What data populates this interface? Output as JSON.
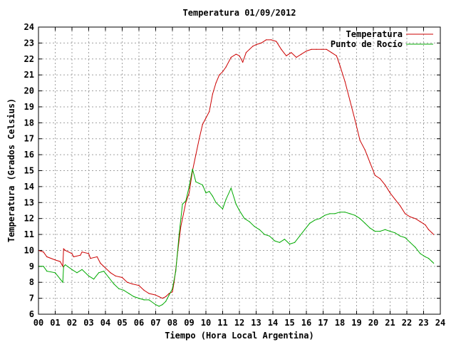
{
  "chart_data": {
    "type": "line",
    "title": "Temperatura 01/09/2012",
    "xlabel": "Tiempo (Hora Local Argentina)",
    "ylabel": "Temperatura (Grados Celsius)",
    "xlim": [
      0,
      24
    ],
    "ylim": [
      6,
      24
    ],
    "x_ticks": [
      "00",
      "01",
      "02",
      "03",
      "04",
      "05",
      "06",
      "07",
      "08",
      "09",
      "10",
      "11",
      "12",
      "13",
      "14",
      "15",
      "16",
      "17",
      "18",
      "19",
      "20",
      "21",
      "22",
      "23",
      "24"
    ],
    "y_ticks": [
      "6",
      "7",
      "8",
      "9",
      "10",
      "11",
      "12",
      "13",
      "14",
      "15",
      "16",
      "17",
      "18",
      "19",
      "20",
      "21",
      "22",
      "23",
      "24"
    ],
    "grid": true,
    "legend_position": "top-right",
    "series": [
      {
        "name": "Temperatura",
        "color": "#cc0000",
        "x": [
          0,
          0.3,
          0.5,
          1.0,
          1.3,
          1.45,
          1.5,
          1.6,
          2.0,
          2.1,
          2.5,
          2.6,
          3.0,
          3.1,
          3.5,
          3.7,
          4.0,
          4.3,
          4.6,
          5.0,
          5.3,
          5.6,
          6.0,
          6.3,
          6.6,
          7.0,
          7.2,
          7.4,
          7.6,
          7.8,
          8.0,
          8.1,
          8.2,
          8.3,
          8.5,
          8.8,
          9.0,
          9.2,
          9.4,
          9.6,
          9.8,
          10.0,
          10.2,
          10.4,
          10.6,
          10.8,
          11.0,
          11.2,
          11.5,
          11.8,
          12.0,
          12.2,
          12.4,
          12.6,
          12.8,
          13.0,
          13.3,
          13.6,
          13.9,
          14.2,
          14.5,
          14.8,
          15.1,
          15.4,
          15.7,
          16.0,
          16.3,
          16.6,
          16.9,
          17.2,
          17.5,
          17.8,
          18.0,
          18.3,
          18.6,
          18.9,
          19.2,
          19.5,
          19.8,
          20.1,
          20.4,
          20.7,
          21.0,
          21.3,
          21.6,
          21.9,
          22.2,
          22.5,
          22.8,
          23.1,
          23.3,
          23.5,
          23.6
        ],
        "y": [
          10.0,
          9.9,
          9.6,
          9.4,
          9.3,
          9.0,
          10.1,
          10.0,
          9.8,
          9.6,
          9.7,
          9.9,
          9.8,
          9.5,
          9.6,
          9.2,
          8.9,
          8.6,
          8.4,
          8.3,
          8.0,
          7.9,
          7.8,
          7.5,
          7.3,
          7.2,
          7.1,
          7.0,
          7.1,
          7.3,
          7.4,
          8.0,
          8.8,
          9.8,
          11.5,
          13.0,
          13.6,
          15.0,
          16.0,
          17.0,
          17.9,
          18.3,
          18.7,
          19.8,
          20.5,
          21.0,
          21.2,
          21.5,
          22.1,
          22.3,
          22.2,
          21.8,
          22.4,
          22.6,
          22.8,
          22.9,
          23.0,
          23.2,
          23.2,
          23.1,
          22.6,
          22.2,
          22.4,
          22.1,
          22.3,
          22.5,
          22.6,
          22.6,
          22.6,
          22.6,
          22.4,
          22.2,
          21.6,
          20.6,
          19.4,
          18.2,
          16.9,
          16.3,
          15.5,
          14.7,
          14.5,
          14.1,
          13.6,
          13.2,
          12.8,
          12.3,
          12.1,
          12.0,
          11.8,
          11.6,
          11.3,
          11.1,
          11.0
        ]
      },
      {
        "name": "Punto de Rocío",
        "color": "#00aa00",
        "x": [
          0,
          0.3,
          0.5,
          1.0,
          1.3,
          1.45,
          1.5,
          1.6,
          2.0,
          2.3,
          2.6,
          3.0,
          3.3,
          3.6,
          3.9,
          4.2,
          4.5,
          4.8,
          5.1,
          5.4,
          5.7,
          6.0,
          6.3,
          6.6,
          7.0,
          7.2,
          7.4,
          7.6,
          7.8,
          8.0,
          8.2,
          8.4,
          8.6,
          8.8,
          9.0,
          9.2,
          9.4,
          9.6,
          9.8,
          10.0,
          10.2,
          10.4,
          10.6,
          10.8,
          11.0,
          11.2,
          11.5,
          11.8,
          12.0,
          12.3,
          12.6,
          12.9,
          13.2,
          13.5,
          13.8,
          14.1,
          14.4,
          14.7,
          15.0,
          15.3,
          15.6,
          15.9,
          16.2,
          16.5,
          16.8,
          17.1,
          17.4,
          17.7,
          18.0,
          18.3,
          18.6,
          18.9,
          19.2,
          19.5,
          19.8,
          20.1,
          20.4,
          20.7,
          21.0,
          21.3,
          21.6,
          21.9,
          22.2,
          22.5,
          22.8,
          23.1,
          23.3,
          23.5,
          23.6
        ],
        "y": [
          9.0,
          9.0,
          8.7,
          8.6,
          8.2,
          8.0,
          9.0,
          9.1,
          8.8,
          8.6,
          8.8,
          8.4,
          8.2,
          8.6,
          8.7,
          8.3,
          7.9,
          7.6,
          7.5,
          7.3,
          7.1,
          7.0,
          6.9,
          6.9,
          6.6,
          6.5,
          6.6,
          6.8,
          7.2,
          7.6,
          8.7,
          11.0,
          12.9,
          13.1,
          14.0,
          15.1,
          14.3,
          14.2,
          14.1,
          13.6,
          13.7,
          13.4,
          13.0,
          12.8,
          12.6,
          13.2,
          13.9,
          12.9,
          12.5,
          12.0,
          11.8,
          11.5,
          11.3,
          11.0,
          10.9,
          10.6,
          10.5,
          10.7,
          10.4,
          10.5,
          10.9,
          11.3,
          11.7,
          11.9,
          12.0,
          12.2,
          12.3,
          12.3,
          12.4,
          12.4,
          12.3,
          12.2,
          12.0,
          11.7,
          11.4,
          11.2,
          11.2,
          11.3,
          11.2,
          11.1,
          10.9,
          10.8,
          10.5,
          10.2,
          9.8,
          9.6,
          9.5,
          9.3,
          9.2
        ]
      }
    ]
  }
}
